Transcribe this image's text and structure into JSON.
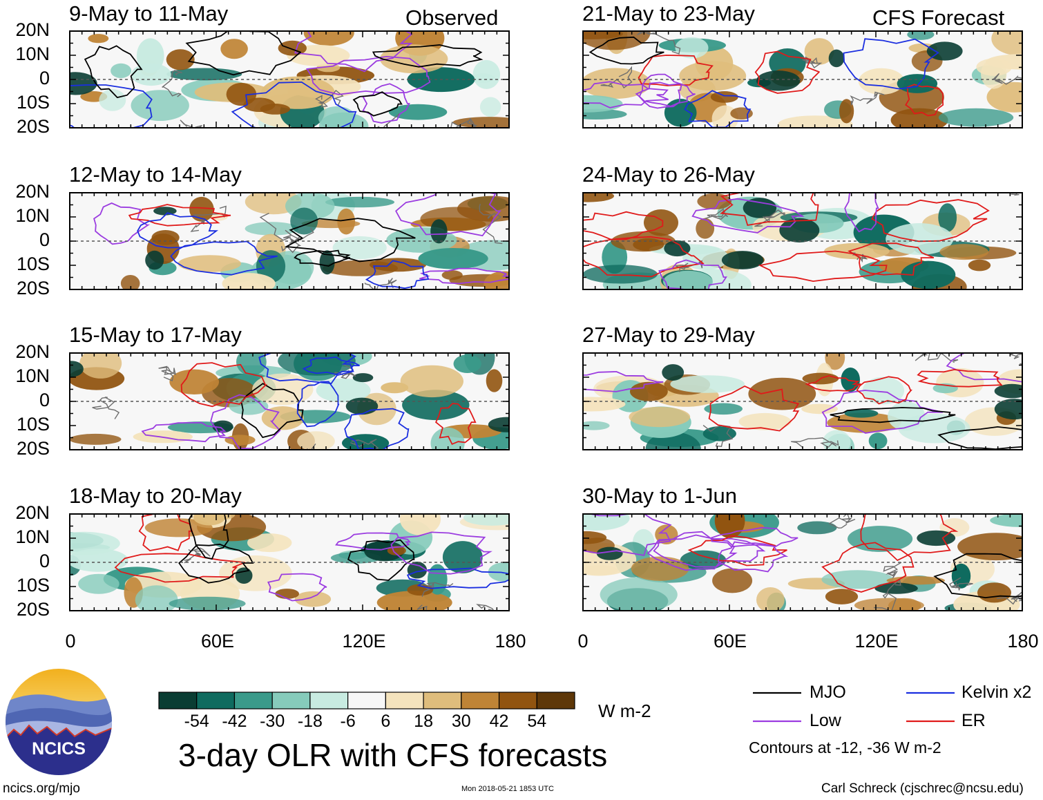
{
  "columns": [
    {
      "key": "observed",
      "header": "Observed"
    },
    {
      "key": "forecast",
      "header": "CFS Forecast"
    }
  ],
  "panels": [
    {
      "title": "9-May to 11-May",
      "column": "observed"
    },
    {
      "title": "12-May to 14-May",
      "column": "observed"
    },
    {
      "title": "15-May to 17-May",
      "column": "observed"
    },
    {
      "title": "18-May to 20-May",
      "column": "observed"
    },
    {
      "title": "21-May to 23-May",
      "column": "forecast"
    },
    {
      "title": "24-May to 26-May",
      "column": "forecast"
    },
    {
      "title": "27-May to 29-May",
      "column": "forecast"
    },
    {
      "title": "30-May to 1-Jun",
      "column": "forecast"
    }
  ],
  "chart_data": {
    "type": "heatmap",
    "title": "3-day OLR with CFS forecasts",
    "variable": "OLR anomaly",
    "units": "W m-2",
    "x_ticks": [
      "0",
      "60E",
      "120E",
      "180"
    ],
    "x_range": [
      0,
      180
    ],
    "y_ticks": [
      "20N",
      "10N",
      "0",
      "10S",
      "20S"
    ],
    "y_range": [
      -20,
      20
    ],
    "colorbar": {
      "labels": [
        "-54",
        "-42",
        "-30",
        "-18",
        "-6",
        "6",
        "18",
        "30",
        "42",
        "54"
      ],
      "colors": [
        "#0a3d33",
        "#0f6b5f",
        "#3a9a8a",
        "#86cbbb",
        "#c8ebe1",
        "#f7f7f7",
        "#f4e3bd",
        "#dfbd7c",
        "#bf8436",
        "#915410",
        "#5e3708"
      ]
    },
    "contours": {
      "legend": [
        {
          "label": "MJO",
          "color": "#000000"
        },
        {
          "label": "Kelvin x2",
          "color": "#1a2ee0"
        },
        {
          "label": "Low",
          "color": "#9b3ce0"
        },
        {
          "label": "ER",
          "color": "#e01a1a"
        }
      ],
      "note": "Contours at -12, -36 W m-2"
    }
  },
  "footer": {
    "url": "ncics.org/mjo",
    "timestamp": "Mon 2018-05-21 1853 UTC",
    "credit": "Carl Schreck (cjschrec@ncsu.edu)",
    "logo_text": "NCICS"
  }
}
